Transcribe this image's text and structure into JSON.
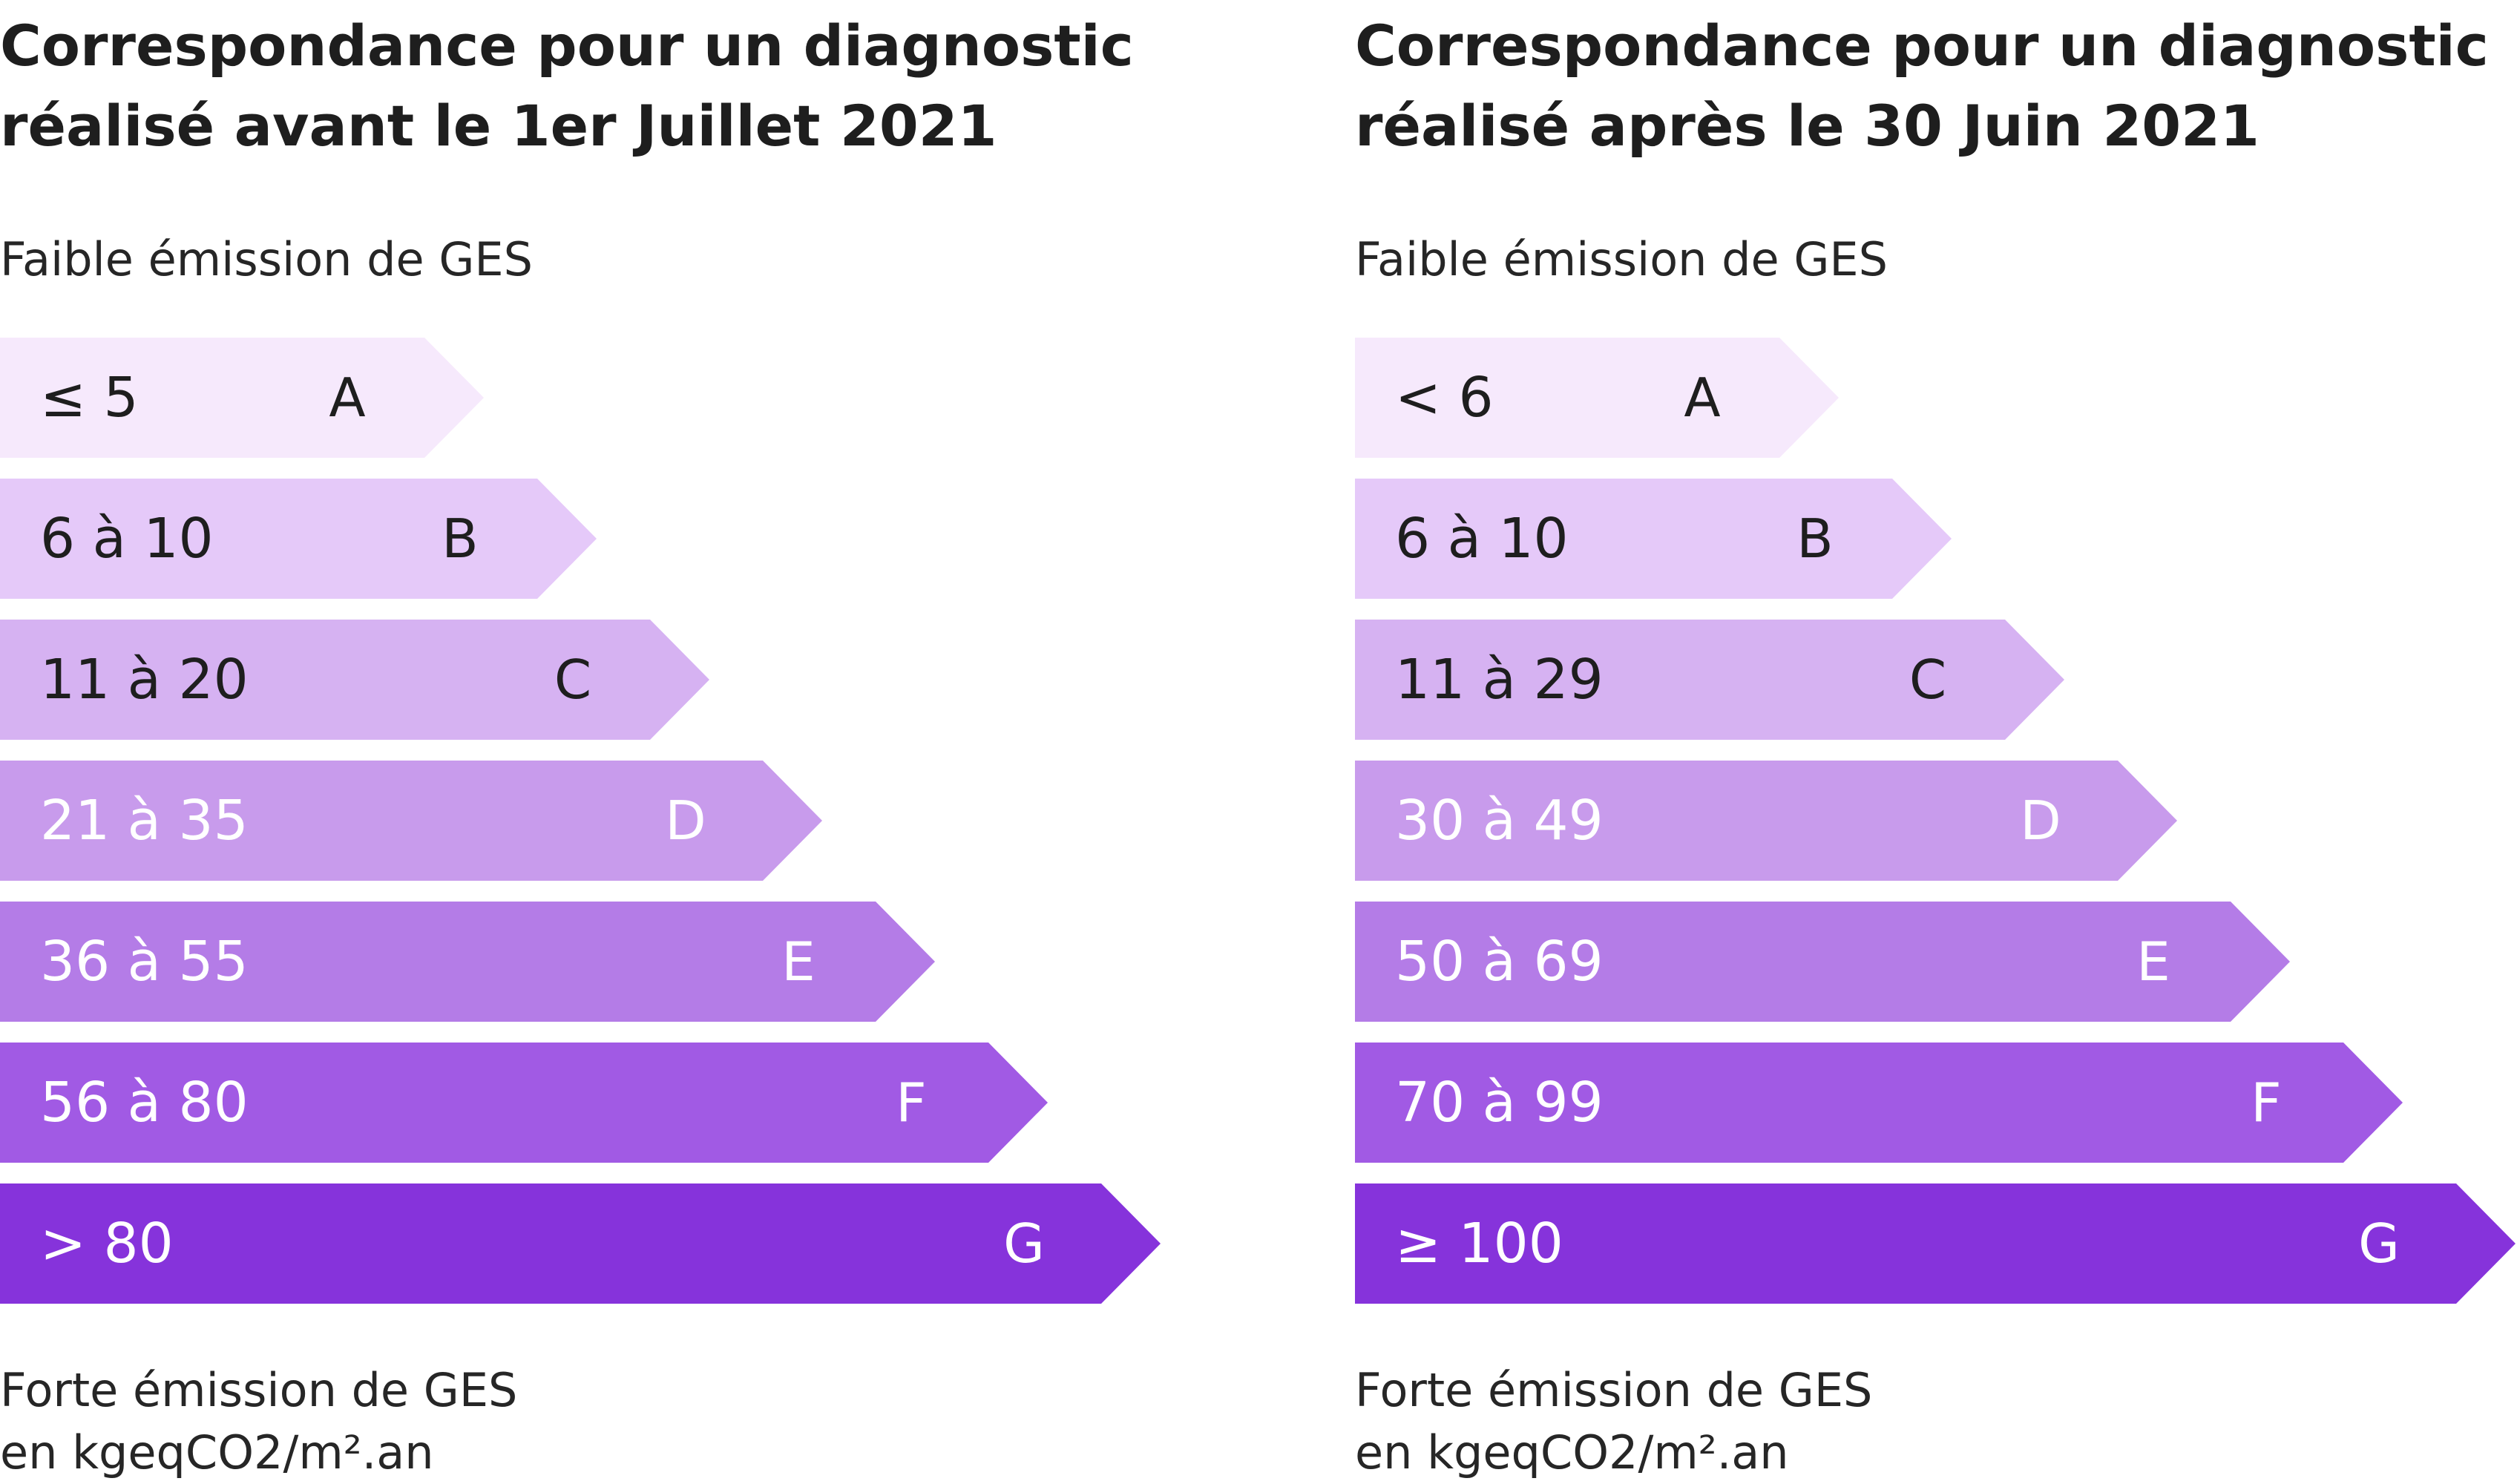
{
  "chart_data": [
    {
      "type": "bar",
      "title": "Correspondance pour un diagnostic réalisé avant le 1er Juillet 2021",
      "top_label": "Faible émission de GES",
      "bottom_label": "Forte émission de GES",
      "unit_label": "en kgeqCO2/m².an",
      "categories": [
        "A",
        "B",
        "C",
        "D",
        "E",
        "F",
        "G"
      ],
      "ranges": [
        "≤ 5",
        "6 à 10",
        "11 à 20",
        "21 à 35",
        "36 à 55",
        "56 à 80",
        "> 80"
      ],
      "colors": [
        "#f6e9fc",
        "#e5c9f9",
        "#d6b2f2",
        "#c89bec",
        "#b47ce7",
        "#a15ae4",
        "#8633db"
      ],
      "text_colors": [
        "#1e1e1e",
        "#1e1e1e",
        "#1e1e1e",
        "#ffffff",
        "#ffffff",
        "#ffffff",
        "#ffffff"
      ]
    },
    {
      "type": "bar",
      "title": "Correspondance pour un diagnostic réalisé après le 30 Juin 2021",
      "top_label": "Faible émission de GES",
      "bottom_label": "Forte émission de GES",
      "unit_label": "en kgeqCO2/m².an",
      "categories": [
        "A",
        "B",
        "C",
        "D",
        "E",
        "F",
        "G"
      ],
      "ranges": [
        "< 6",
        "6 à 10",
        "11 à 29",
        "30 à 49",
        "50 à 69",
        "70 à 99",
        "≥ 100"
      ],
      "colors": [
        "#f6e9fc",
        "#e5c9f9",
        "#d6b2f2",
        "#c89bec",
        "#b47ce7",
        "#a15ae4",
        "#8633db"
      ],
      "text_colors": [
        "#1e1e1e",
        "#1e1e1e",
        "#1e1e1e",
        "#ffffff",
        "#ffffff",
        "#ffffff",
        "#ffffff"
      ]
    }
  ]
}
